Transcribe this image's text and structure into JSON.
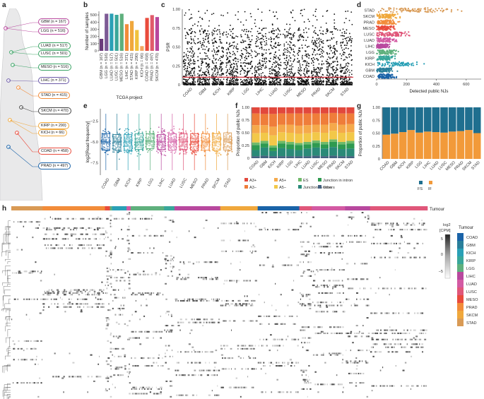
{
  "panel_letters": [
    "a",
    "b",
    "c",
    "d",
    "e",
    "f",
    "g",
    "h"
  ],
  "tumour_colors": {
    "COAD": "#1a63a8",
    "GBM": "#2a7f9a",
    "KICH": "#2aa0b6",
    "KIRP": "#39a79a",
    "LGG": "#5fb07d",
    "LIHC": "#b8489e",
    "LUAD": "#d35aa3",
    "LUSC": "#e0577a",
    "MESO": "#e94b3c",
    "PRAD": "#f28c3a",
    "SKCM": "#f0a83c",
    "STAD": "#d99a55"
  },
  "body_map": {
    "labels": [
      {
        "text": "GBM (n = 167)",
        "color": "#b8489e"
      },
      {
        "text": "LGG (n = 516)",
        "color": "#b8489e"
      },
      {
        "text": "LUAD (n = 517)",
        "color": "#3aa365"
      },
      {
        "text": "LUSC (n = 501)",
        "color": "#3aa365"
      },
      {
        "text": "MESO (n = 516)",
        "color": "#3aa365"
      },
      {
        "text": "LIHC (n = 371)",
        "color": "#6c5aa8"
      },
      {
        "text": "STAD (n = 415)",
        "color": "#f28c3a"
      },
      {
        "text": "SKCM (n = 470)",
        "color": "#444444"
      },
      {
        "text": "KIRP (n = 290)",
        "color": "#f0a83c"
      },
      {
        "text": "KICH (n = 66)",
        "color": "#f0a83c"
      },
      {
        "text": "COAD (n = 458)",
        "color": "#e94b3c"
      },
      {
        "text": "PRAD (n = 497)",
        "color": "#1a63a8"
      }
    ]
  },
  "chart_data": [
    {
      "panel": "b",
      "type": "bar",
      "categories": [
        "GBM (n = 167)",
        "LGG (n = 516)",
        "LUAD (n = 517)",
        "LUSC (n = 501)",
        "MESO (n = 516)",
        "LIHC (n = 371)",
        "STAD (n = 415)",
        "KIRP (n = 290)",
        "KICH (n = 66)",
        "COAD (n = 458)",
        "PRAD (n = 497)",
        "SKCM (n = 470)"
      ],
      "values": [
        167,
        516,
        517,
        501,
        516,
        371,
        415,
        290,
        66,
        458,
        497,
        470
      ],
      "colors": [
        "#6a3b7a",
        "#7d5a95",
        "#2aa0b6",
        "#39a79a",
        "#5fb07d",
        "#f28c3a",
        "#f0a83c",
        "#f0c23c",
        "#f4a460",
        "#e94b3c",
        "#e05a6a",
        "#b8489e"
      ],
      "xlabel": "TCGA project",
      "ylabel": "Number of samples",
      "ylim": [
        0,
        550
      ],
      "yticks": [
        0,
        100,
        200,
        300,
        400,
        500
      ]
    },
    {
      "panel": "c",
      "type": "scatter",
      "categories": [
        "COAD",
        "GBM",
        "KICH",
        "KIRP",
        "LGG",
        "LIHC",
        "LUAD",
        "LUSC",
        "MESO",
        "PRAD",
        "SKCM",
        "STAD"
      ],
      "ylabel": "PSR",
      "ylim": [
        0,
        1
      ],
      "yticks": [
        "0",
        "0.25",
        "0.50",
        "0.75",
        "1.00"
      ],
      "threshold": 0.1
    },
    {
      "panel": "d",
      "type": "scatter",
      "categories": [
        "STAD",
        "SKCM",
        "PRAD",
        "MESO",
        "LUSC",
        "LUAD",
        "LIHC",
        "LGG",
        "KIRP",
        "KICH",
        "GBM",
        "COAD"
      ],
      "xlabel": "Detected public NJs",
      "xlim": [
        0,
        700
      ],
      "xticks": [
        0,
        200,
        400,
        600
      ],
      "max_values": [
        680,
        170,
        170,
        130,
        260,
        160,
        100,
        180,
        150,
        360,
        150,
        150
      ]
    },
    {
      "panel": "e",
      "type": "box",
      "categories": [
        "COAD",
        "GBM",
        "KICH",
        "KIRP",
        "LGG",
        "LIHC",
        "LUAD",
        "LUSC",
        "MESO",
        "PRAD",
        "SKCM",
        "STAD"
      ],
      "ylabel": "log2[Read frequency]",
      "ylim": [
        -9,
        -1
      ],
      "yticks": [
        "−2.5",
        "−5.0",
        "−7.5"
      ],
      "medians": [
        -5,
        -5,
        -5,
        -5,
        -4.9,
        -5,
        -5,
        -5,
        -5,
        -5,
        -5,
        -5
      ],
      "q1": [
        -6,
        -6,
        -6,
        -5.9,
        -5.8,
        -5.9,
        -6,
        -5.9,
        -6,
        -6,
        -6,
        -6
      ],
      "q3": [
        -4,
        -4.1,
        -4.1,
        -4,
        -4,
        -4.1,
        -4,
        -4,
        -4,
        -4,
        -4,
        -3.9
      ]
    },
    {
      "panel": "f",
      "type": "bar",
      "categories": [
        "COAD",
        "GBM",
        "KICH",
        "KIRP",
        "LGG",
        "LIHC",
        "LUAD",
        "LUSC",
        "MESO",
        "PRAD",
        "SKCM",
        "STAD"
      ],
      "ylabel": "Proportion of public NJs",
      "ylim": [
        0,
        1
      ],
      "yticks": [
        "0",
        "0.25",
        "0.50",
        "0.75",
        "1.00"
      ],
      "series": [
        {
          "name": "Others",
          "color": "#44617f",
          "values": [
            0.04,
            0.05,
            0.04,
            0.04,
            0.04,
            0.04,
            0.04,
            0.05,
            0.04,
            0.05,
            0.04,
            0.04
          ]
        },
        {
          "name": "Junction in exon",
          "color": "#2a8a78",
          "values": [
            0.12,
            0.16,
            0.1,
            0.16,
            0.14,
            0.12,
            0.15,
            0.16,
            0.15,
            0.17,
            0.14,
            0.15
          ]
        },
        {
          "name": "Junction in intron",
          "color": "#2e9a50",
          "values": [
            0.1,
            0.08,
            0.07,
            0.09,
            0.09,
            0.1,
            0.08,
            0.09,
            0.08,
            0.1,
            0.09,
            0.1
          ]
        },
        {
          "name": "ES",
          "color": "#6fba6a",
          "values": [
            0.05,
            0.05,
            0.04,
            0.05,
            0.05,
            0.04,
            0.05,
            0.05,
            0.05,
            0.05,
            0.05,
            0.05
          ]
        },
        {
          "name": "A5−",
          "color": "#f2c849",
          "values": [
            0.18,
            0.16,
            0.2,
            0.17,
            0.18,
            0.18,
            0.17,
            0.16,
            0.18,
            0.17,
            0.18,
            0.17
          ]
        },
        {
          "name": "A5+",
          "color": "#f5a94b",
          "values": [
            0.16,
            0.15,
            0.17,
            0.15,
            0.16,
            0.16,
            0.16,
            0.15,
            0.16,
            0.15,
            0.16,
            0.16
          ]
        },
        {
          "name": "A3−",
          "color": "#ef7d3a",
          "values": [
            0.23,
            0.22,
            0.25,
            0.22,
            0.22,
            0.24,
            0.23,
            0.22,
            0.22,
            0.2,
            0.22,
            0.21
          ]
        },
        {
          "name": "A3+",
          "color": "#e2483c",
          "values": [
            0.12,
            0.13,
            0.13,
            0.12,
            0.12,
            0.12,
            0.12,
            0.12,
            0.12,
            0.11,
            0.12,
            0.12
          ]
        }
      ]
    },
    {
      "panel": "g",
      "type": "bar",
      "categories": [
        "COAD",
        "GBM",
        "KICH",
        "KIRP",
        "LGG",
        "LIHC",
        "LUAD",
        "LUSC",
        "MESO",
        "PRAD",
        "SKCM",
        "STAD"
      ],
      "ylabel": "Proportion of public NJs",
      "ylim": [
        0,
        1
      ],
      "yticks": [
        "0",
        "0.25",
        "0.50",
        "0.75",
        "1.00"
      ],
      "series": [
        {
          "name": "IF",
          "color": "#f29a3a",
          "values": [
            0.47,
            0.49,
            0.52,
            0.56,
            0.51,
            0.53,
            0.52,
            0.51,
            0.53,
            0.54,
            0.56,
            0.5
          ]
        },
        {
          "name": "FS",
          "color": "#1f6f8f",
          "values": [
            0.53,
            0.51,
            0.48,
            0.44,
            0.49,
            0.47,
            0.48,
            0.49,
            0.47,
            0.46,
            0.44,
            0.5
          ]
        }
      ]
    },
    {
      "panel": "h",
      "type": "heatmap",
      "tumour_label": "Tumour",
      "colorbar_title": "log2\n[CPM]",
      "colorbar_ticks": [
        "5",
        "0",
        "−5"
      ],
      "legend_title": "Tumour",
      "legend": [
        "COAD",
        "GBM",
        "KICH",
        "KIRP",
        "LGG",
        "LIHC",
        "LUAD",
        "LUSC",
        "MESO",
        "PRAD",
        "SKCM",
        "STAD"
      ],
      "column_groups": [
        {
          "name": "STAD",
          "frac": 0.075
        },
        {
          "name": "PRAD",
          "frac": 0.15
        },
        {
          "name": "MESO",
          "frac": 0.012
        },
        {
          "name": "LGG",
          "frac": 0.005
        },
        {
          "name": "KICH",
          "frac": 0.035
        },
        {
          "name": "LUAD",
          "frac": 0.01
        },
        {
          "name": "LGG",
          "frac": 0.08
        },
        {
          "name": "KIRP",
          "frac": 0.025
        },
        {
          "name": "LIHC",
          "frac": 0.11
        },
        {
          "name": "SKCM",
          "frac": 0.09
        },
        {
          "name": "COAD",
          "frac": 0.1
        },
        {
          "name": "LUSC",
          "frac": 0.03
        },
        {
          "name": "LUAD",
          "frac": 0.08
        },
        {
          "name": "LIHC",
          "frac": 0.06
        },
        {
          "name": "LUSC",
          "frac": 0.138
        }
      ]
    }
  ]
}
